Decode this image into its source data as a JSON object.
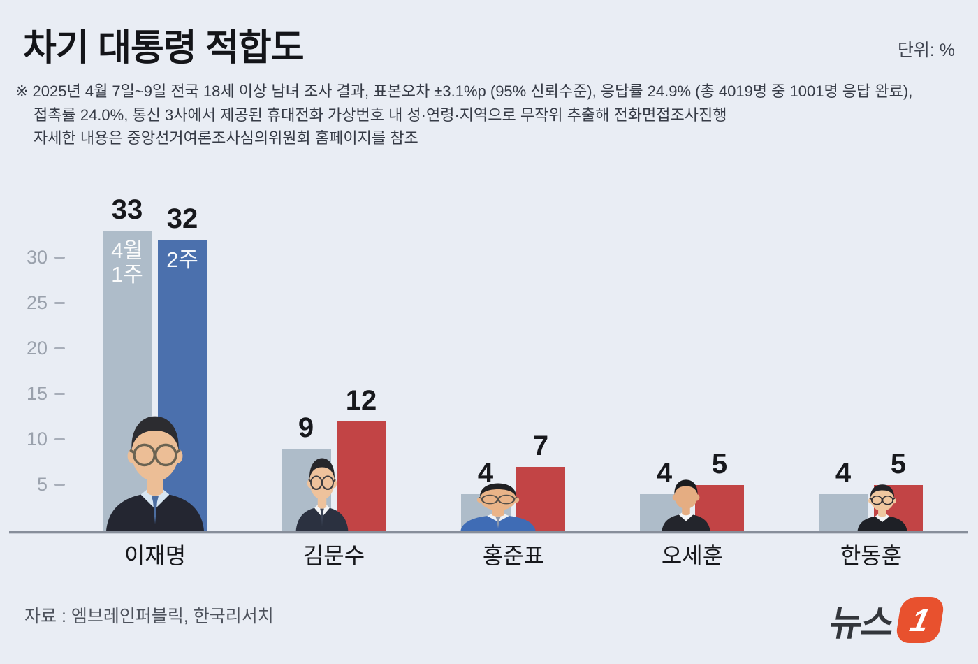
{
  "header": {
    "title": "차기 대통령 적합도",
    "unit_label": "단위: %",
    "note_lines": [
      "※ 2025년 4월 7일~9일 전국 18세 이상 남녀 조사 결과, 표본오차 ±3.1%p (95% 신뢰수준), 응답률 24.9% (총 4019명 중 1001명 응답 완료),",
      "접촉률 24.0%, 통신 3사에서 제공된 휴대전화 가상번호 내 성·연령·지역으로 무작위 추출해 전화면접조사진행",
      "자세한 내용은 중앙선거여론조사심의위원회 홈페이지를 참조"
    ]
  },
  "chart_data": {
    "type": "bar",
    "title": "차기 대통령 적합도",
    "unit": "%",
    "categories": [
      "이재명",
      "김문수",
      "홍준표",
      "오세훈",
      "한동훈"
    ],
    "series": [
      {
        "name": "4월 1주",
        "in_bar_lines": [
          "4월",
          "1주"
        ],
        "values": [
          33,
          9,
          4,
          4,
          4
        ],
        "colors": [
          "#aebcc9",
          "#aebcc9",
          "#aebcc9",
          "#aebcc9",
          "#aebcc9"
        ]
      },
      {
        "name": "2주",
        "in_bar_lines": [
          "2주"
        ],
        "values": [
          32,
          12,
          7,
          5,
          5
        ],
        "colors": [
          "#4b70ad",
          "#c24445",
          "#c24445",
          "#c24445",
          "#c24445"
        ]
      }
    ],
    "yticks": [
      5,
      10,
      15,
      20,
      25,
      30
    ],
    "ylim": [
      0,
      35
    ],
    "grid": false,
    "value_labels": true,
    "legend_position": "inside-first-group-bars"
  },
  "candidates": [
    {
      "name": "이재명",
      "avatar": {
        "skin": "#ecbe96",
        "hair": "#2c2c30",
        "glasses": true,
        "glassesColor": "#6b6352",
        "suit": "#242631",
        "shirt": "#d8e6f2",
        "tie": "#4c6da0"
      }
    },
    {
      "name": "김문수",
      "avatar": {
        "skin": "#eec29c",
        "hair": "#26262a",
        "glasses": true,
        "glassesColor": "#3c3c40",
        "suit": "#2b3140",
        "shirt": "#f3f4f6",
        "tie": "#3c4456"
      }
    },
    {
      "name": "홍준표",
      "avatar": {
        "skin": "#eab488",
        "hair": "#202023",
        "glasses": true,
        "glassesColor": "#55504a",
        "suit": "#3f6cb5",
        "shirt": "#eef2f6",
        "tie": "#8e99ab"
      }
    },
    {
      "name": "오세훈",
      "avatar": {
        "skin": "#e5ad82",
        "hair": "#1a1b1e",
        "glasses": false,
        "glassesColor": "#333333",
        "suit": "#23252c",
        "shirt": "#f4f5f7",
        "tie": null
      }
    },
    {
      "name": "한동훈",
      "avatar": {
        "skin": "#efc79f",
        "hair": "#232327",
        "glasses": true,
        "glassesColor": "#2e2e33",
        "suit": "#1e2026",
        "shirt": "#f4f5f7",
        "tie": null
      }
    }
  ],
  "footer": {
    "source": "자료 : 엠브레인퍼블릭, 한국리서치",
    "logo_text": "뉴스",
    "logo_badge": "1",
    "logo_badge_color": "#e8512e"
  },
  "colors": {
    "background": "#e9edf4",
    "bar_previous": "#aebcc9",
    "bar_current_lee": "#4b70ad",
    "bar_current_others": "#c24445",
    "axis_line": "#878e9a",
    "tick_text": "#9aa1ac"
  }
}
